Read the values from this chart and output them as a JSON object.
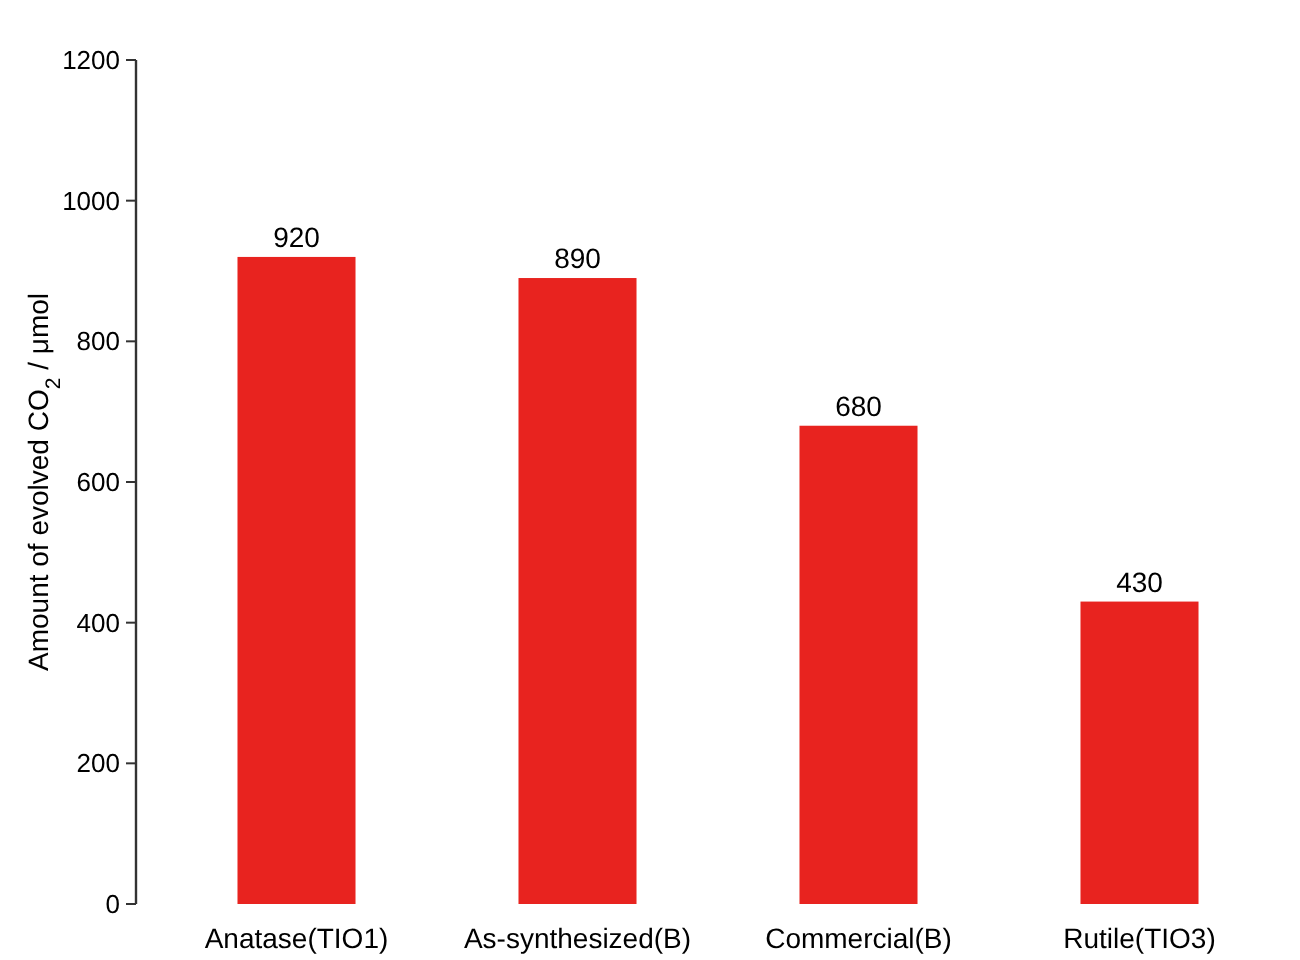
{
  "chart_data": {
    "type": "bar",
    "ylabel": "Amount of evolved CO$_{2}$ / μmol",
    "categories": [
      "Anatase(TIO1)",
      "As-synthesized(B)",
      "Commercial(B)",
      "Rutile(TIO3)"
    ],
    "values": [
      920,
      890,
      680,
      430
    ],
    "color": "#e8231f",
    "ylim": [
      0,
      1200
    ],
    "yticks": [
      0,
      200,
      400,
      600,
      800,
      1000,
      1200
    ],
    "data_labels": true,
    "grid": false
  }
}
